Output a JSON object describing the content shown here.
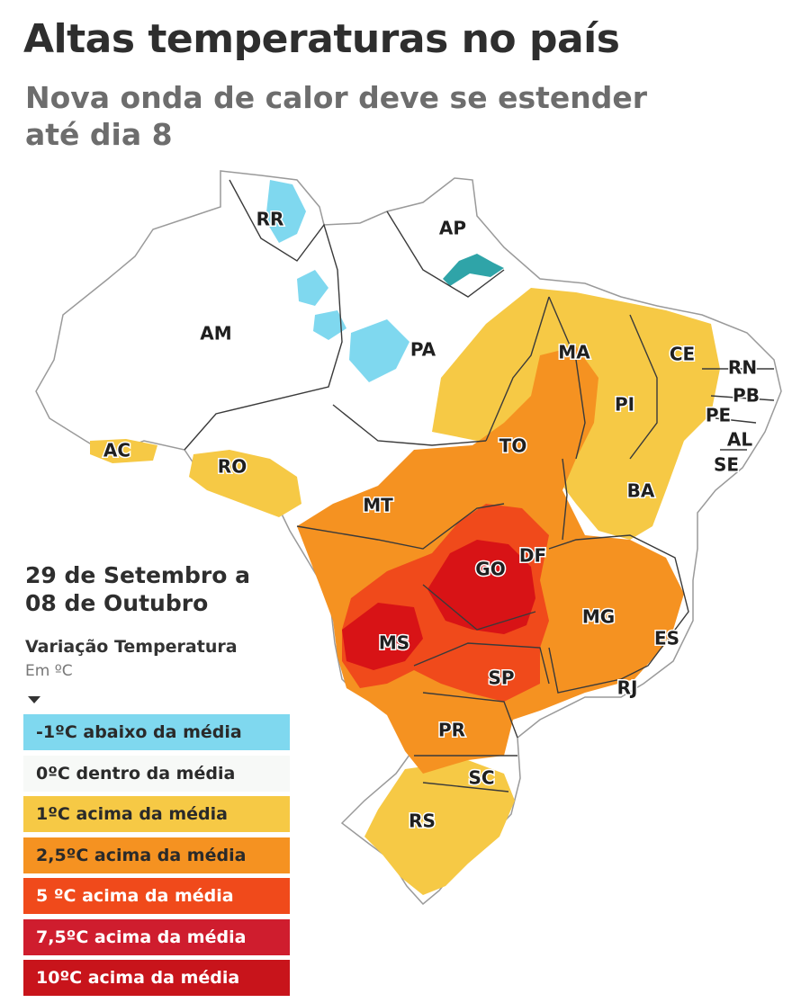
{
  "title": "Altas temperaturas no país",
  "subtitle": "Nova onda de calor deve se estender até dia 8",
  "period": [
    "29 de Setembro a",
    "08 de Outubro"
  ],
  "legend_title": "Variação Temperatura",
  "legend_unit": "Em ºC",
  "legend": [
    {
      "label": "-1ºC abaixo da média",
      "color": "#7fd8ef",
      "text_color": "#2a2a2a"
    },
    {
      "label": "0ºC dentro da média",
      "color": "#f7f9f7",
      "text_color": "#2a2a2a"
    },
    {
      "label": "1ºC acima da média",
      "color": "#f6c945",
      "text_color": "#2a2a2a"
    },
    {
      "label": "2,5ºC acima da média",
      "color": "#f59221",
      "text_color": "#2a2a2a"
    },
    {
      "label": "5 ºC acima da média",
      "color": "#f04a1b",
      "text_color": "#ffffff"
    },
    {
      "label": "7,5ºC acima da média",
      "color": "#cf1d2e",
      "text_color": "#ffffff"
    },
    {
      "label": "10ºC acima da média",
      "color": "#c8141b",
      "text_color": "#ffffff"
    }
  ],
  "states": [
    "RR",
    "AP",
    "AM",
    "PA",
    "MA",
    "CE",
    "RN",
    "PB",
    "PI",
    "PE",
    "AL",
    "SE",
    "AC",
    "RO",
    "TO",
    "BA",
    "MT",
    "DF",
    "GO",
    "MG",
    "ES",
    "MS",
    "SP",
    "RJ",
    "PR",
    "SC",
    "RS"
  ]
}
